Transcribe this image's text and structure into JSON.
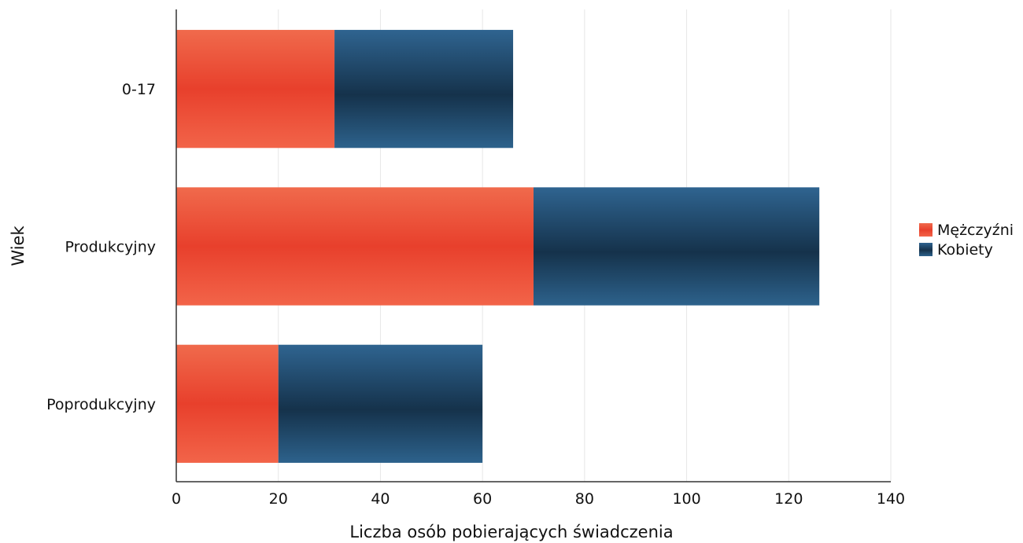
{
  "chart_data": {
    "type": "bar",
    "orientation": "horizontal",
    "stacked": true,
    "categories": [
      "0-17",
      "Produkcyjny",
      "Poprodukcyjny"
    ],
    "series": [
      {
        "name": "Mężczyźni",
        "values": [
          31,
          70,
          20
        ],
        "color": "#e8402c"
      },
      {
        "name": "Kobiety",
        "values": [
          35,
          56,
          40
        ],
        "color": "#1d4566"
      }
    ],
    "xlabel": "Liczba osób pobierających świadczenia",
    "ylabel": "Wiek",
    "xlim": [
      0,
      140
    ],
    "xticks": [
      0,
      20,
      40,
      60,
      80,
      100,
      120,
      140
    ],
    "grid": true,
    "legend": "right"
  }
}
